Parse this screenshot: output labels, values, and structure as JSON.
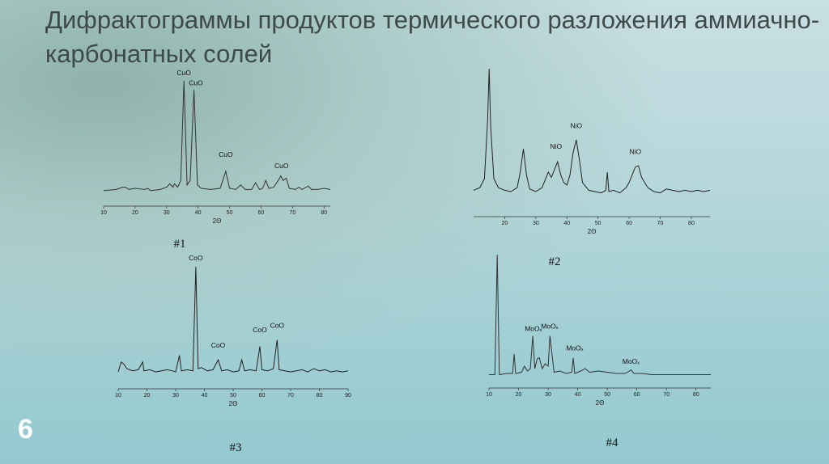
{
  "title": "Дифрактограммы продуктов термического разложения аммиачно-карбонатных солей",
  "page_number": "6",
  "chart_data": [
    {
      "type": "line",
      "caption": "#1",
      "x_label": "2Θ",
      "xlim": [
        10,
        82
      ],
      "xticks": [
        10,
        20,
        30,
        40,
        50,
        60,
        70,
        80
      ],
      "color": "#333333",
      "x": [
        10,
        14,
        16,
        17,
        18,
        20,
        23,
        24,
        25,
        28,
        30,
        31,
        32,
        32.5,
        33.5,
        34.5,
        35.5,
        36.5,
        37.5,
        38.7,
        39.8,
        41,
        44,
        47,
        48.8,
        50,
        52,
        53.5,
        55,
        57,
        58.3,
        59.5,
        60.5,
        61.5,
        62.5,
        64,
        65.5,
        66.3,
        67,
        68,
        69,
        71,
        72,
        73,
        75,
        76,
        78,
        80,
        82
      ],
      "values": [
        3,
        4,
        6,
        6,
        4,
        5,
        4,
        5,
        3,
        4,
        6,
        9,
        6,
        9,
        6,
        12,
        100,
        8,
        12,
        92,
        8,
        5,
        4,
        5,
        20,
        5,
        4,
        8,
        4,
        4,
        10,
        4,
        5,
        12,
        5,
        6,
        12,
        16,
        12,
        14,
        5,
        4,
        6,
        4,
        7,
        4,
        4,
        5,
        4
      ],
      "annotations": [
        {
          "text": "CuO",
          "x": 35.5,
          "y": 105
        },
        {
          "text": "CuO",
          "x": 39.3,
          "y": 96
        },
        {
          "text": "CuO",
          "x": 48.8,
          "y": 33
        },
        {
          "text": "CuO",
          "x": 66.5,
          "y": 23
        }
      ]
    },
    {
      "type": "line",
      "caption": "#2",
      "x_label": "2Θ",
      "xlim": [
        10,
        86
      ],
      "xticks": [
        20,
        30,
        40,
        50,
        60,
        70,
        80
      ],
      "color": "#222222",
      "x": [
        10,
        12,
        13.5,
        14.5,
        15,
        15.5,
        16.5,
        18,
        20,
        22,
        24,
        25,
        26,
        27,
        28,
        30,
        32,
        33,
        34,
        35,
        36,
        37,
        38,
        39,
        40,
        41,
        42,
        43,
        44,
        45,
        47,
        49,
        51,
        52.5,
        53,
        53.5,
        55,
        57,
        59,
        60,
        61,
        62,
        63,
        64,
        66,
        68,
        70,
        72,
        74,
        76,
        78,
        80,
        82,
        84,
        86
      ],
      "values": [
        6,
        8,
        15,
        60,
        100,
        55,
        15,
        8,
        6,
        5,
        8,
        20,
        38,
        18,
        7,
        5,
        8,
        14,
        20,
        16,
        22,
        28,
        18,
        12,
        10,
        18,
        35,
        45,
        30,
        12,
        6,
        5,
        4,
        6,
        20,
        5,
        6,
        4,
        8,
        12,
        18,
        24,
        25,
        16,
        8,
        5,
        4,
        7,
        6,
        5,
        6,
        5,
        6,
        5,
        6
      ],
      "annotations": [
        {
          "text": "NiO",
          "x": 36.5,
          "y": 38
        },
        {
          "text": "NiO",
          "x": 43,
          "y": 54
        },
        {
          "text": "NiO",
          "x": 62,
          "y": 34
        }
      ]
    },
    {
      "type": "line",
      "caption": "#3",
      "x_label": "2Θ",
      "xlim": [
        10,
        90
      ],
      "xticks": [
        10,
        20,
        30,
        40,
        50,
        60,
        70,
        80,
        90
      ],
      "color": "#222222",
      "x": [
        10,
        11,
        12,
        13,
        15,
        17,
        18.5,
        19,
        21,
        23,
        25,
        27,
        29,
        30,
        31.3,
        32,
        34,
        36,
        37,
        37.8,
        39,
        41,
        43,
        44.8,
        46,
        48,
        50,
        52,
        53,
        54,
        56,
        58,
        59.3,
        60,
        62,
        64,
        65.3,
        66,
        68,
        70,
        72,
        74,
        76,
        78,
        80,
        82,
        84,
        86,
        88,
        90
      ],
      "values": [
        5,
        14,
        12,
        8,
        6,
        7,
        14,
        6,
        7,
        5,
        6,
        7,
        6,
        5,
        20,
        6,
        7,
        6,
        100,
        8,
        9,
        6,
        7,
        16,
        6,
        7,
        5,
        6,
        16,
        6,
        7,
        6,
        28,
        7,
        6,
        8,
        34,
        7,
        6,
        5,
        6,
        7,
        5,
        8,
        6,
        7,
        5,
        6,
        5,
        6
      ],
      "annotations": [
        {
          "text": "CoO",
          "x": 37,
          "y": 106
        },
        {
          "text": "CoO",
          "x": 44.8,
          "y": 27
        },
        {
          "text": "CoO",
          "x": 59.3,
          "y": 41
        },
        {
          "text": "CoO",
          "x": 65.3,
          "y": 45
        }
      ]
    },
    {
      "type": "line",
      "caption": "#4",
      "x_label": "2Θ",
      "xlim": [
        10,
        85
      ],
      "xticks": [
        10,
        20,
        30,
        40,
        50,
        60,
        70,
        80
      ],
      "color": "#333333",
      "x": [
        10,
        12,
        12.8,
        13.5,
        16,
        18,
        18.5,
        19,
        21,
        22,
        23,
        24,
        24.8,
        25.5,
        26.3,
        27,
        28,
        29,
        30,
        30.6,
        32,
        34,
        36,
        38,
        38.5,
        39,
        41,
        42.5,
        44,
        47,
        50,
        53,
        56,
        57.5,
        58,
        59,
        62,
        65,
        70,
        75,
        80,
        85
      ],
      "values": [
        1,
        1,
        100,
        1,
        2,
        2,
        18,
        2,
        3,
        8,
        4,
        6,
        33,
        6,
        14,
        15,
        6,
        10,
        8,
        33,
        3,
        4,
        2,
        3,
        15,
        2,
        4,
        6,
        3,
        4,
        3,
        2,
        2,
        4,
        5,
        2,
        2,
        1,
        1,
        1,
        1,
        1
      ],
      "annotations": [
        {
          "text": "MoOₓ",
          "x": 25,
          "y": 37
        },
        {
          "text": "MoOₓ",
          "x": 30.5,
          "y": 39
        },
        {
          "text": "MoOₓ",
          "x": 39,
          "y": 21
        },
        {
          "text": "MoOₓ",
          "x": 58,
          "y": 10
        }
      ]
    }
  ]
}
